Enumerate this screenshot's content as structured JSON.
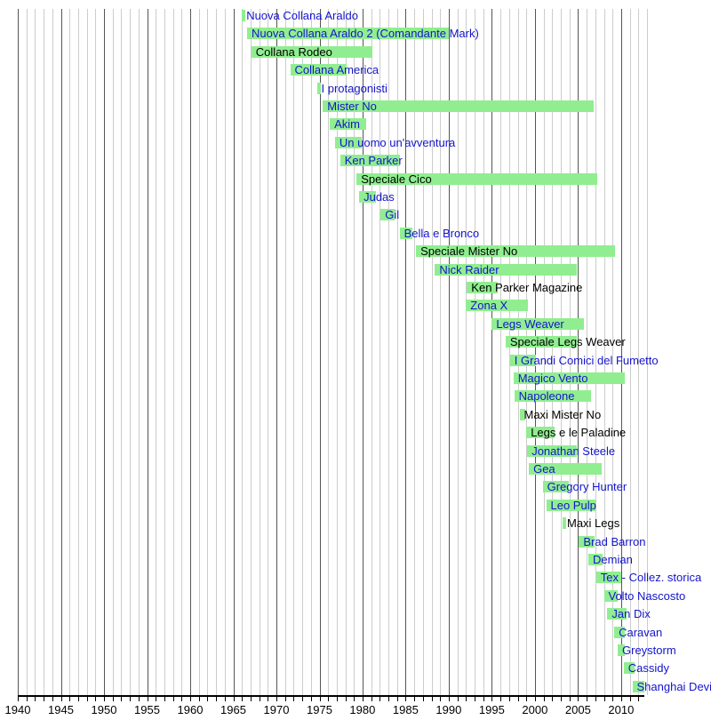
{
  "chart_data": {
    "type": "bar",
    "variant": "horizontal-timeline-gantt",
    "title": "",
    "xlabel": "",
    "ylabel": "",
    "grid": "on",
    "legend": "none",
    "x_axis": {
      "min": 1940,
      "max": 2013,
      "minor_tick_step": 1,
      "major_tick_step": 5,
      "tick_labels": [
        "1940",
        "1945",
        "1950",
        "1955",
        "1960",
        "1965",
        "1970",
        "1975",
        "1980",
        "1985",
        "1990",
        "1995",
        "2000",
        "2005",
        "2010"
      ]
    },
    "colors": {
      "bar": "#90ee90",
      "link_text": "#1414cc",
      "plain_text": "#000000",
      "grid_minor": "#cccccc",
      "grid_major": "#555555",
      "axis": "#000000",
      "background": "#ffffff"
    },
    "series": [
      {
        "label": "Nuova Collana Araldo",
        "start": 1966.0,
        "end": 1966.4,
        "link": true
      },
      {
        "label": "Nuova Collana Araldo 2 (Comandante Mark)",
        "start": 1966.6,
        "end": 1990.0,
        "link": true
      },
      {
        "label": "Collana Rodeo",
        "start": 1967.1,
        "end": 1981.1,
        "link": false
      },
      {
        "label": "Collana America",
        "start": 1971.6,
        "end": 1978.1,
        "link": true
      },
      {
        "label": "I protagonisti",
        "start": 1974.7,
        "end": 1975.2,
        "link": true
      },
      {
        "label": "Mister No",
        "start": 1975.4,
        "end": 2006.8,
        "link": true
      },
      {
        "label": "Akim",
        "start": 1976.2,
        "end": 1980.4,
        "link": true
      },
      {
        "label": "Un uomo un'avventura",
        "start": 1976.8,
        "end": 1979.9,
        "link": true
      },
      {
        "label": "Ken Parker",
        "start": 1977.4,
        "end": 1984.3,
        "link": true
      },
      {
        "label": "Speciale Cico",
        "start": 1979.3,
        "end": 2007.2,
        "link": false
      },
      {
        "label": "Judas",
        "start": 1979.6,
        "end": 1981.6,
        "link": true
      },
      {
        "label": "Gil",
        "start": 1982.1,
        "end": 1983.7,
        "link": true
      },
      {
        "label": "Bella e Bronco",
        "start": 1984.3,
        "end": 1985.8,
        "link": true
      },
      {
        "label": "Speciale Mister No",
        "start": 1986.2,
        "end": 2009.3,
        "link": false
      },
      {
        "label": "Nick Raider",
        "start": 1988.4,
        "end": 2004.9,
        "link": true
      },
      {
        "label": "Ken Parker Magazine",
        "start": 1992.1,
        "end": 1995.7,
        "link": false
      },
      {
        "label": "Zona X",
        "start": 1992.0,
        "end": 1999.2,
        "link": true
      },
      {
        "label": "Legs Weaver",
        "start": 1995.0,
        "end": 2005.7,
        "link": true
      },
      {
        "label": "Speciale Legs Weaver",
        "start": 1996.6,
        "end": 2004.9,
        "link": false
      },
      {
        "label": "I Grandi Comici del Fumetto",
        "start": 1997.1,
        "end": 2000.1,
        "link": true
      },
      {
        "label": "Magico Vento",
        "start": 1997.5,
        "end": 2010.4,
        "link": true
      },
      {
        "label": "Napoleone",
        "start": 1997.6,
        "end": 2006.5,
        "link": true
      },
      {
        "label": "Maxi Mister No",
        "start": 1998.2,
        "end": 1998.9,
        "link": false
      },
      {
        "label": "Legs e le Paladine",
        "start": 1999.0,
        "end": 2002.3,
        "link": false
      },
      {
        "label": "Jonathan Steele",
        "start": 1999.1,
        "end": 2004.9,
        "link": true
      },
      {
        "label": "Gea",
        "start": 1999.3,
        "end": 2007.8,
        "link": true
      },
      {
        "label": "Gregory Hunter",
        "start": 2000.9,
        "end": 2003.9,
        "link": true
      },
      {
        "label": "Leo Pulp",
        "start": 2001.3,
        "end": 2007.0,
        "link": true
      },
      {
        "label": "Maxi Legs",
        "start": 2003.2,
        "end": 2003.6,
        "link": false
      },
      {
        "label": "Brad Barron",
        "start": 2005.1,
        "end": 2006.9,
        "link": true
      },
      {
        "label": "Demian",
        "start": 2006.2,
        "end": 2007.8,
        "link": true
      },
      {
        "label": "Tex - Collez. storica",
        "start": 2007.1,
        "end": 2010.0,
        "link": true
      },
      {
        "label": "Volto Nascosto",
        "start": 2008.0,
        "end": 2009.6,
        "link": true
      },
      {
        "label": "Jan Dix",
        "start": 2008.4,
        "end": 2010.6,
        "link": true
      },
      {
        "label": "Caravan",
        "start": 2009.2,
        "end": 2010.4,
        "link": true
      },
      {
        "label": "Greystorm",
        "start": 2009.6,
        "end": 2010.4,
        "link": true
      },
      {
        "label": "Cassidy",
        "start": 2010.3,
        "end": 2011.6,
        "link": true
      },
      {
        "label": "Shanghai Devil",
        "start": 2011.3,
        "end": 2012.7,
        "link": true
      }
    ]
  }
}
